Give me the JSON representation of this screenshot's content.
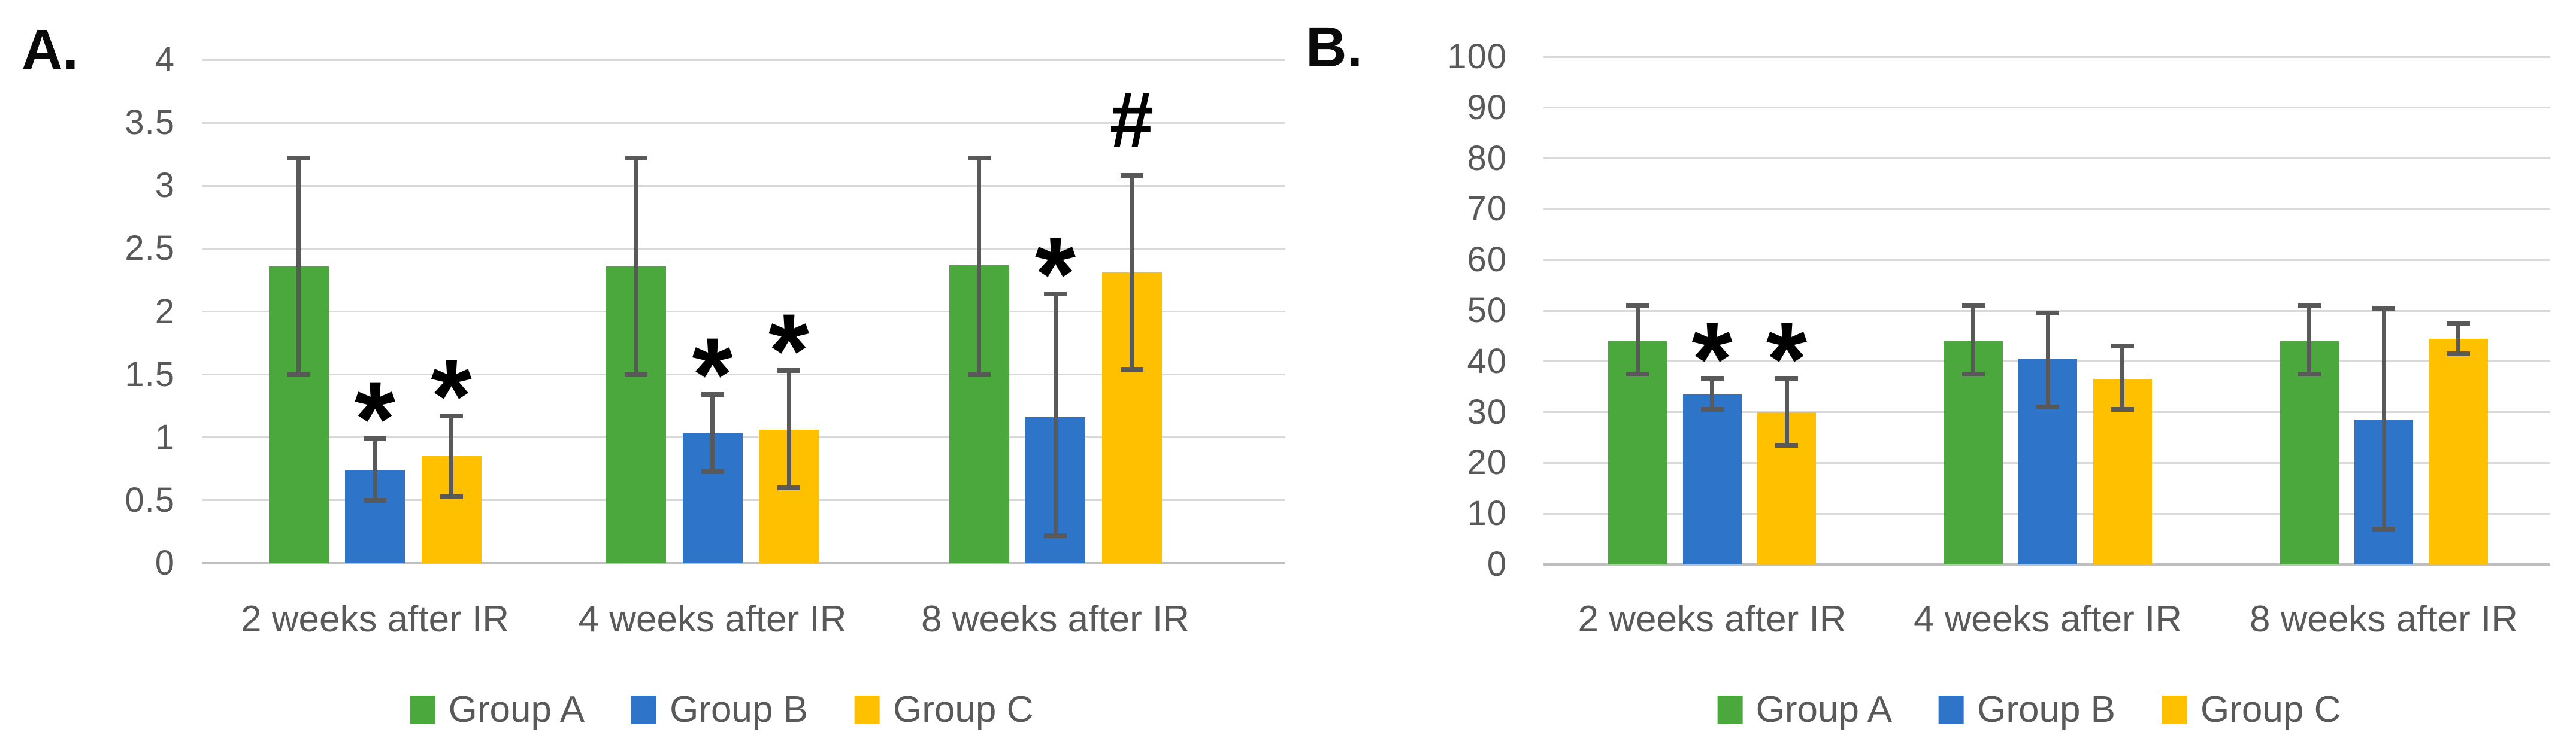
{
  "figure": {
    "description": "Two-panel grouped bar figure with error bars and significance symbols"
  },
  "chart_data": [
    {
      "type": "bar",
      "panel_label": "A.",
      "title": "",
      "xlabel": "",
      "ylabel": "",
      "ylim": [
        0,
        4
      ],
      "y_ticks": [
        "4",
        "3.5",
        "3",
        "2.5",
        "2",
        "1.5",
        "1",
        "0.5",
        "0"
      ],
      "grid": true,
      "legend_position": "bottom",
      "categories": [
        "2 weeks after IR",
        "4 weeks after IR",
        "8 weeks after IR"
      ],
      "series": [
        {
          "name": "Group A",
          "color": "#4BA83C",
          "values": [
            2.36,
            2.36,
            2.37
          ],
          "err_low": [
            1.5,
            1.5,
            1.5
          ],
          "err_high": [
            3.22,
            3.22,
            3.22
          ],
          "annotations": [
            "",
            "",
            ""
          ]
        },
        {
          "name": "Group B",
          "color": "#2E74C8",
          "values": [
            0.74,
            1.03,
            1.16
          ],
          "err_low": [
            0.5,
            0.73,
            0.22
          ],
          "err_high": [
            0.99,
            1.34,
            2.14
          ],
          "annotations": [
            "*",
            "*",
            "*"
          ]
        },
        {
          "name": "Group C",
          "color": "#FFC000",
          "values": [
            0.85,
            1.06,
            2.31
          ],
          "err_low": [
            0.53,
            0.6,
            1.54
          ],
          "err_high": [
            1.17,
            1.53,
            3.08
          ],
          "annotations": [
            "*",
            "*",
            "#"
          ]
        }
      ]
    },
    {
      "type": "bar",
      "panel_label": "B.",
      "title": "",
      "xlabel": "",
      "ylabel": "",
      "ylim": [
        0,
        100
      ],
      "y_ticks": [
        "100",
        "90",
        "80",
        "70",
        "60",
        "50",
        "40",
        "30",
        "20",
        "10",
        "0"
      ],
      "grid": true,
      "legend_position": "bottom",
      "categories": [
        "2 weeks after IR",
        "4 weeks after IR",
        "8 weeks after IR"
      ],
      "series": [
        {
          "name": "Group A",
          "color": "#4BA83C",
          "values": [
            44,
            44,
            44
          ],
          "err_low": [
            37.5,
            37.5,
            37.5
          ],
          "err_high": [
            51,
            51,
            51
          ],
          "annotations": [
            "",
            "",
            ""
          ]
        },
        {
          "name": "Group B",
          "color": "#2E74C8",
          "values": [
            33.5,
            40.5,
            28.5
          ],
          "err_low": [
            30.5,
            31,
            7
          ],
          "err_high": [
            36.5,
            49.5,
            50.5
          ],
          "annotations": [
            "*",
            "",
            ""
          ]
        },
        {
          "name": "Group C",
          "color": "#FFC000",
          "values": [
            30,
            36.5,
            44.5
          ],
          "err_low": [
            23.5,
            30.5,
            41.5
          ],
          "err_high": [
            36.5,
            43,
            47.5
          ],
          "annotations": [
            "*",
            "",
            ""
          ]
        }
      ]
    }
  ]
}
